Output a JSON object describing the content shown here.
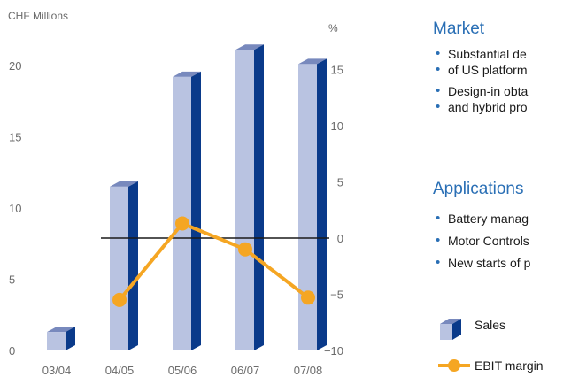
{
  "chart_data": {
    "type": "bar",
    "categories": [
      "03/04",
      "04/05",
      "05/06",
      "06/07",
      "07/08"
    ],
    "series": [
      {
        "name": "Sales",
        "type": "bar",
        "axis": "left",
        "values": [
          1.3,
          11.5,
          19.2,
          21.1,
          20.1
        ]
      },
      {
        "name": "EBIT margin",
        "type": "line",
        "axis": "right",
        "values": [
          null,
          -5.5,
          1.3,
          -1.0,
          -5.3
        ]
      }
    ],
    "left_axis": {
      "unit": "CHF Millions",
      "ticks": [
        "0",
        "5",
        "10",
        "15",
        "20"
      ],
      "range": [
        0,
        22
      ]
    },
    "right_axis": {
      "unit": "%",
      "ticks": [
        "−10",
        "−5",
        "0",
        "5",
        "10",
        "15"
      ],
      "range": [
        -10,
        16
      ]
    },
    "reference_line": 0,
    "colors": {
      "bar_front": "#b9c3e1",
      "bar_side": "#0a3a8a",
      "bar_top": "#7889bd",
      "line": "#f5a623",
      "zero_line": "#1a1a1a"
    },
    "legend_position": "bottom-right"
  },
  "panel": {
    "market_heading": "Market",
    "market_items": [
      "Substantial de",
      "of US platform",
      "Design-in obta",
      "and hybrid pro"
    ],
    "applications_heading": "Applications",
    "applications_items": [
      "Battery manag",
      "Motor Controls",
      "New starts of p"
    ]
  },
  "legend": {
    "sales_label": "Sales",
    "ebit_label": "EBIT margin"
  }
}
